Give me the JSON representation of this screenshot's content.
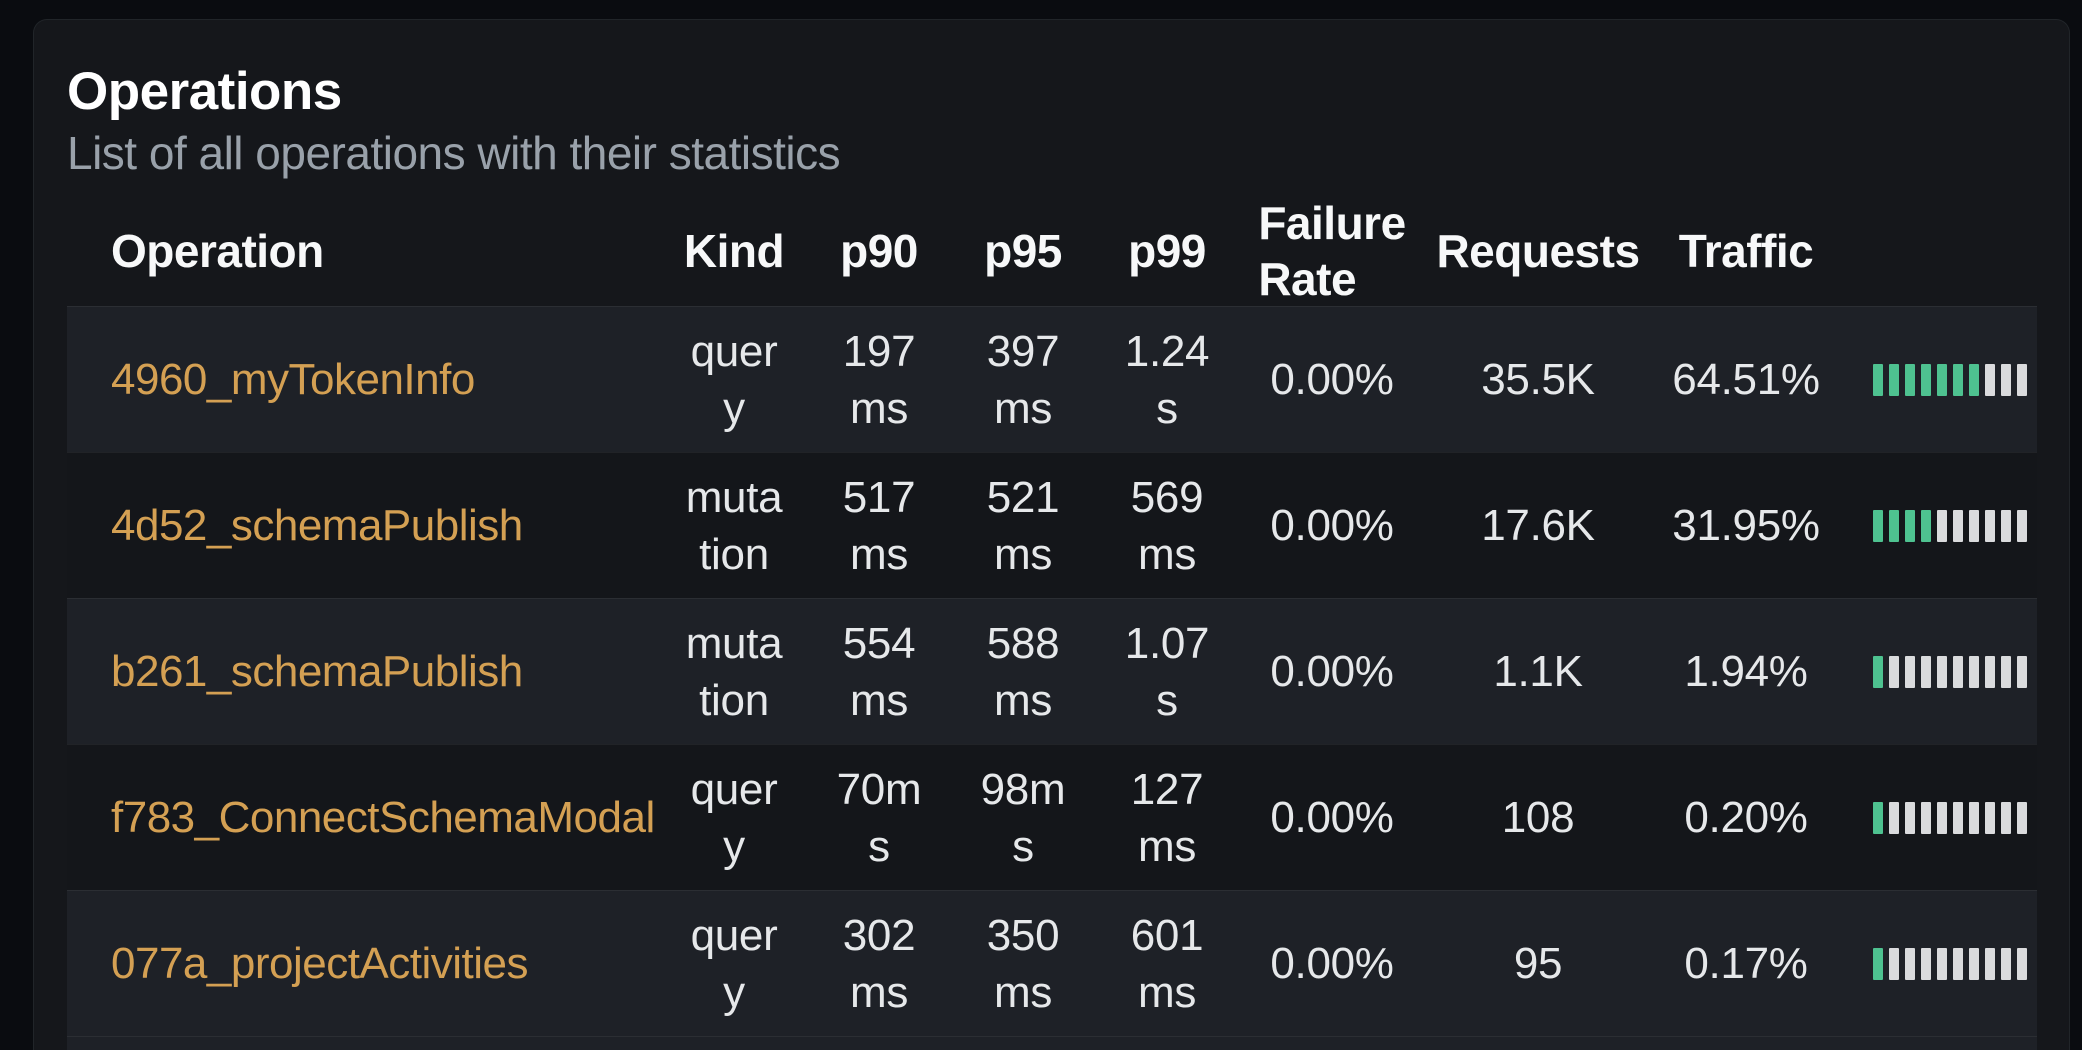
{
  "card": {
    "title": "Operations",
    "subtitle": "List of all operations with their statistics"
  },
  "table": {
    "headers": {
      "operation": "Operation",
      "kind": "Kind",
      "p90": "p90",
      "p95": "p95",
      "p99": "p99",
      "failure_rate": "Failure\nRate",
      "requests": "Requests",
      "traffic": "Traffic"
    },
    "rows": [
      {
        "operation": "4960_myTokenInfo",
        "kind": "quer\ny",
        "p90": "197\nms",
        "p95": "397\nms",
        "p99": "1.24\ns",
        "failure_rate": "0.00%",
        "requests": "35.5K",
        "traffic": "64.51%",
        "traffic_bars": {
          "total": 10,
          "filled": 7
        }
      },
      {
        "operation": "4d52_schemaPublish",
        "kind": "muta\ntion",
        "p90": "517\nms",
        "p95": "521\nms",
        "p99": "569\nms",
        "failure_rate": "0.00%",
        "requests": "17.6K",
        "traffic": "31.95%",
        "traffic_bars": {
          "total": 10,
          "filled": 4
        }
      },
      {
        "operation": "b261_schemaPublish",
        "kind": "muta\ntion",
        "p90": "554\nms",
        "p95": "588\nms",
        "p99": "1.07\ns",
        "failure_rate": "0.00%",
        "requests": "1.1K",
        "traffic": "1.94%",
        "traffic_bars": {
          "total": 10,
          "filled": 1
        }
      },
      {
        "operation": "f783_ConnectSchemaModal",
        "kind": "quer\ny",
        "p90": "70m\ns",
        "p95": "98m\ns",
        "p99": "127\nms",
        "failure_rate": "0.00%",
        "requests": "108",
        "traffic": "0.20%",
        "traffic_bars": {
          "total": 10,
          "filled": 1
        }
      },
      {
        "operation": "077a_projectActivities",
        "kind": "quer\ny",
        "p90": "302\nms",
        "p95": "350\nms",
        "p99": "601\nms",
        "failure_rate": "0.00%",
        "requests": "95",
        "traffic": "0.17%",
        "traffic_bars": {
          "total": 10,
          "filled": 1
        }
      }
    ]
  },
  "colors": {
    "page_bg": "#0a0c10",
    "card_bg": "#15171b",
    "card_border": "#212529",
    "row_odd": "#1e2127",
    "row_even": "#14161a",
    "accent_link": "#d4a053",
    "bar_filled": "#4ec290",
    "bar_empty": "#dadbdd",
    "muted_text": "#99a1aa",
    "cell_text": "#e6e8ea"
  }
}
